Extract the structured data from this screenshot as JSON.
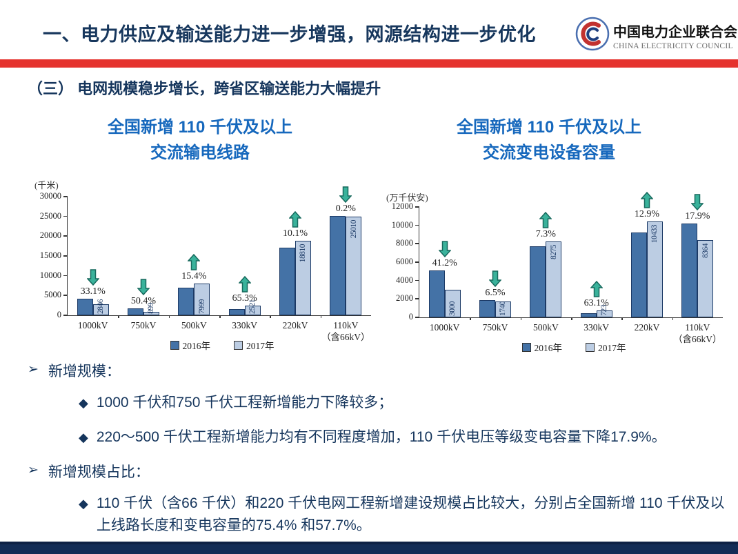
{
  "header": {
    "title": "一、电力供应及输送能力进一步增强，网源结构进一步优化",
    "logo": {
      "emblem": "cec-circular-emblem",
      "org_cn": "中国电力企业联合会",
      "org_en": "CHINA ELECTRICITY COUNCIL"
    }
  },
  "section": {
    "heading": "（三） 电网规模稳步增长，跨省区输送能力大幅提升"
  },
  "chart_data": [
    {
      "type": "bar",
      "title_lines": [
        "全国新增 110 千伏及以上",
        "交流输电线路"
      ],
      "unit": "(千米)",
      "categories": [
        {
          "label": "1000kV",
          "sub": ""
        },
        {
          "label": "750kV",
          "sub": ""
        },
        {
          "label": "500kV",
          "sub": ""
        },
        {
          "label": "330kV",
          "sub": ""
        },
        {
          "label": "220kV",
          "sub": ""
        },
        {
          "label": "110kV",
          "sub": "（含66kV）"
        }
      ],
      "series": [
        {
          "name": "2016年",
          "values": [
            4254,
            1813,
            6932,
            1525,
            17085,
            25060
          ]
        },
        {
          "name": "2017年",
          "values": [
            2846,
            899,
            7999,
            2521,
            18810,
            25010
          ]
        }
      ],
      "value_labels_on": "2017年",
      "changes": [
        {
          "dir": "down",
          "pct": "33.1%"
        },
        {
          "dir": "down",
          "pct": "50.4%"
        },
        {
          "dir": "up",
          "pct": "15.4%"
        },
        {
          "dir": "up",
          "pct": "65.3%"
        },
        {
          "dir": "up",
          "pct": "10.1%"
        },
        {
          "dir": "down",
          "pct": "0.2%"
        }
      ],
      "ylim": [
        0,
        30000
      ],
      "ytick_step": 5000,
      "grid": false,
      "legend_position": "bottom"
    },
    {
      "type": "bar",
      "title_lines": [
        "全国新增 110 千伏及以上",
        "交流变电设备容量"
      ],
      "unit": "(万千伏安)",
      "categories": [
        {
          "label": "1000kV",
          "sub": ""
        },
        {
          "label": "750kV",
          "sub": ""
        },
        {
          "label": "500kV",
          "sub": ""
        },
        {
          "label": "330kV",
          "sub": ""
        },
        {
          "label": "220kV",
          "sub": ""
        },
        {
          "label": "110kV",
          "sub": "（含66kV）"
        }
      ],
      "series": [
        {
          "name": "2016年",
          "values": [
            5102,
            1861,
            7712,
            443,
            9241,
            10187
          ]
        },
        {
          "name": "2017年",
          "values": [
            3000,
            1740,
            8275,
            723,
            10433,
            8364
          ]
        }
      ],
      "value_labels_on": "2017年",
      "changes": [
        {
          "dir": "down",
          "pct": "41.2%"
        },
        {
          "dir": "down",
          "pct": "6.5%"
        },
        {
          "dir": "up",
          "pct": "7.3%"
        },
        {
          "dir": "up",
          "pct": "63.1%"
        },
        {
          "dir": "up",
          "pct": "12.9%"
        },
        {
          "dir": "down",
          "pct": "17.9%"
        }
      ],
      "ylim": [
        0,
        12000
      ],
      "ytick_step": 2000,
      "grid": false,
      "legend_position": "bottom"
    }
  ],
  "bullets": [
    {
      "level": 1,
      "marker": "➢",
      "text": "新增规模："
    },
    {
      "level": 2,
      "marker": "◆",
      "text": "1000 千伏和750 千伏工程新增能力下降较多；"
    },
    {
      "level": 2,
      "marker": "◆",
      "text": "220～500 千伏工程新增能力均有不同程度增加，110 千伏电压等级变电容量下降17.9%。"
    },
    {
      "level": 1,
      "marker": "➢",
      "text": "新增规模占比："
    },
    {
      "level": 2,
      "marker": "◆",
      "text": "110 千伏（含66 千伏）和220 千伏电网工程新增建设规模占比较大，分别占全国新增 110 千伏及以上线路长度和变电容量的75.4% 和57.7%。"
    }
  ],
  "colors": {
    "accent_red": "#e5332e",
    "title_navy": "#17375d",
    "chart_title_blue": "#1668bd",
    "bar_2016": "#4472a6",
    "bar_2017": "#bccde3",
    "bar_border": "#1c3a66",
    "arrow_fill": "#3ab29b",
    "arrow_stroke": "#17695d",
    "footer_navy": "#132c56"
  }
}
